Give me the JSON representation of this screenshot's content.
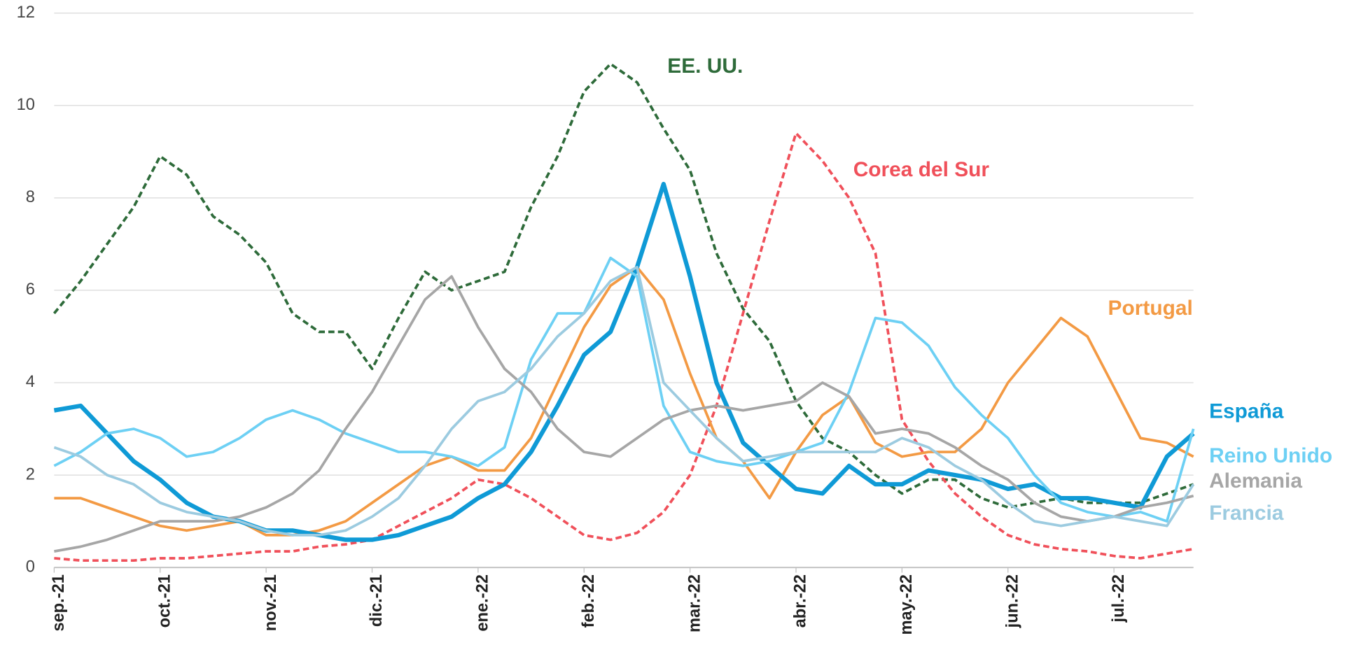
{
  "chart_data": {
    "type": "line",
    "categories": [
      "sep.-21",
      null,
      null,
      null,
      "oct.-21",
      null,
      null,
      null,
      "nov.-21",
      null,
      null,
      null,
      "dic.-21",
      null,
      null,
      null,
      "ene.-22",
      null,
      null,
      null,
      "feb.-22",
      null,
      null,
      null,
      "mar.-22",
      null,
      null,
      null,
      "abr.-22",
      null,
      null,
      null,
      "may.-22",
      null,
      null,
      null,
      "jun.-22",
      null,
      null,
      null,
      "jul.-22",
      null,
      null,
      null
    ],
    "ylim": [
      0,
      12
    ],
    "yticks": [
      0,
      2,
      4,
      6,
      8,
      10,
      12
    ],
    "grid": true,
    "series": [
      {
        "name": "EE. UU.",
        "color": "#2e6b3a",
        "dash": true,
        "width": 3,
        "values": [
          5.5,
          6.2,
          7.0,
          7.8,
          8.9,
          8.5,
          7.6,
          7.2,
          6.6,
          5.5,
          5.1,
          5.1,
          4.3,
          5.4,
          6.4,
          6.0,
          6.2,
          6.4,
          7.8,
          8.9,
          10.3,
          10.9,
          10.5,
          9.5,
          8.6,
          6.8,
          5.6,
          4.9,
          3.6,
          2.8,
          2.5,
          2.0,
          1.6,
          1.9,
          1.9,
          1.5,
          1.3,
          1.4,
          1.5,
          1.4,
          1.4,
          1.4,
          1.6,
          1.8
        ]
      },
      {
        "name": "Corea del Sur",
        "color": "#f0505a",
        "dash": true,
        "width": 3,
        "values": [
          0.2,
          0.15,
          0.15,
          0.15,
          0.2,
          0.2,
          0.25,
          0.3,
          0.35,
          0.35,
          0.45,
          0.5,
          0.6,
          0.9,
          1.2,
          1.5,
          1.9,
          1.8,
          1.5,
          1.1,
          0.7,
          0.6,
          0.75,
          1.2,
          2.0,
          3.5,
          5.5,
          7.5,
          9.4,
          8.8,
          8.0,
          6.8,
          3.2,
          2.3,
          1.6,
          1.1,
          0.7,
          0.5,
          0.4,
          0.35,
          0.25,
          0.2,
          0.3,
          0.4
        ]
      },
      {
        "name": "Portugal",
        "color": "#f39a44",
        "dash": false,
        "width": 3,
        "values": [
          1.5,
          1.5,
          1.3,
          1.1,
          0.9,
          0.8,
          0.9,
          1.0,
          0.7,
          0.7,
          0.8,
          1.0,
          1.4,
          1.8,
          2.2,
          2.4,
          2.1,
          2.1,
          2.8,
          4.0,
          5.2,
          6.1,
          6.5,
          5.8,
          4.2,
          2.8,
          2.3,
          1.5,
          2.5,
          3.3,
          3.7,
          2.7,
          2.4,
          2.5,
          2.5,
          3.0,
          4.0,
          4.7,
          5.4,
          5.0,
          3.9,
          2.8,
          2.7,
          2.4
        ]
      },
      {
        "name": "España",
        "color": "#0f9ad6",
        "dash": false,
        "width": 5,
        "values": [
          3.4,
          3.5,
          2.9,
          2.3,
          1.9,
          1.4,
          1.1,
          1.0,
          0.8,
          0.8,
          0.7,
          0.6,
          0.6,
          0.7,
          0.9,
          1.1,
          1.5,
          1.8,
          2.5,
          3.5,
          4.6,
          5.1,
          6.5,
          8.3,
          6.3,
          4.0,
          2.7,
          2.2,
          1.7,
          1.6,
          2.2,
          1.8,
          1.8,
          2.1,
          2.0,
          1.9,
          1.7,
          1.8,
          1.5,
          1.5,
          1.4,
          1.3,
          2.4,
          2.9
        ]
      },
      {
        "name": "Reino Unido",
        "color": "#6dd0f4",
        "dash": false,
        "width": 3,
        "values": [
          2.2,
          2.5,
          2.9,
          3.0,
          2.8,
          2.4,
          2.5,
          2.8,
          3.2,
          3.4,
          3.2,
          2.9,
          2.7,
          2.5,
          2.5,
          2.4,
          2.2,
          2.6,
          4.5,
          5.5,
          5.5,
          6.7,
          6.3,
          3.5,
          2.5,
          2.3,
          2.2,
          2.3,
          2.5,
          2.7,
          3.8,
          5.4,
          5.3,
          4.8,
          3.9,
          3.3,
          2.8,
          2.0,
          1.4,
          1.2,
          1.1,
          1.2,
          1.0,
          3.0
        ]
      },
      {
        "name": "Alemania",
        "color": "#a6a6a6",
        "dash": false,
        "width": 3,
        "values": [
          0.35,
          0.45,
          0.6,
          0.8,
          1.0,
          1.0,
          1.0,
          1.1,
          1.3,
          1.6,
          2.1,
          3.0,
          3.8,
          4.8,
          5.8,
          6.3,
          5.2,
          4.3,
          3.8,
          3.0,
          2.5,
          2.4,
          2.8,
          3.2,
          3.4,
          3.5,
          3.4,
          3.5,
          3.6,
          4.0,
          3.7,
          2.9,
          3.0,
          2.9,
          2.6,
          2.2,
          1.9,
          1.4,
          1.1,
          1.0,
          1.1,
          1.3,
          1.4,
          1.55
        ]
      },
      {
        "name": "Francia",
        "color": "#9ccbe0",
        "dash": false,
        "width": 3,
        "values": [
          2.6,
          2.4,
          2.0,
          1.8,
          1.4,
          1.2,
          1.1,
          1.0,
          0.8,
          0.7,
          0.7,
          0.8,
          1.1,
          1.5,
          2.2,
          3.0,
          3.6,
          3.8,
          4.3,
          5.0,
          5.5,
          6.2,
          6.5,
          4.0,
          3.4,
          2.8,
          2.3,
          2.4,
          2.5,
          2.5,
          2.5,
          2.5,
          2.8,
          2.6,
          2.2,
          1.9,
          1.4,
          1.0,
          0.9,
          1.0,
          1.1,
          1.0,
          0.9,
          1.8
        ]
      }
    ]
  }
}
